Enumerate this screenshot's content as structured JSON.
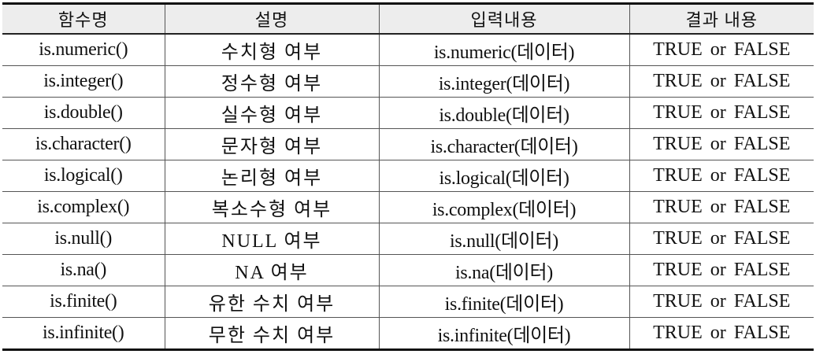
{
  "table": {
    "headers": [
      "함수명",
      "설명",
      "입력내용",
      "결과 내용"
    ],
    "rows": [
      [
        "is.numeric()",
        "수치형 여부",
        "is.numeric(데이터)",
        "TRUE or FALSE"
      ],
      [
        "is.integer()",
        "정수형 여부",
        "is.integer(데이터)",
        "TRUE or FALSE"
      ],
      [
        "is.double()",
        "실수형 여부",
        "is.double(데이터)",
        "TRUE or FALSE"
      ],
      [
        "is.character()",
        "문자형 여부",
        "is.character(데이터)",
        "TRUE or FALSE"
      ],
      [
        "is.logical()",
        "논리형 여부",
        "is.logical(데이터)",
        "TRUE or FALSE"
      ],
      [
        "is.complex()",
        "복소수형 여부",
        "is.complex(데이터)",
        "TRUE or FALSE"
      ],
      [
        "is.null()",
        "NULL 여부",
        "is.null(데이터)",
        "TRUE or FALSE"
      ],
      [
        "is.na()",
        "NA 여부",
        "is.na(데이터)",
        "TRUE or FALSE"
      ],
      [
        "is.finite()",
        "유한 수치 여부",
        "is.finite(데이터)",
        "TRUE or FALSE"
      ],
      [
        "is.infinite()",
        "무한 수치 여부",
        "is.infinite(데이터)",
        "TRUE or FALSE"
      ]
    ]
  }
}
